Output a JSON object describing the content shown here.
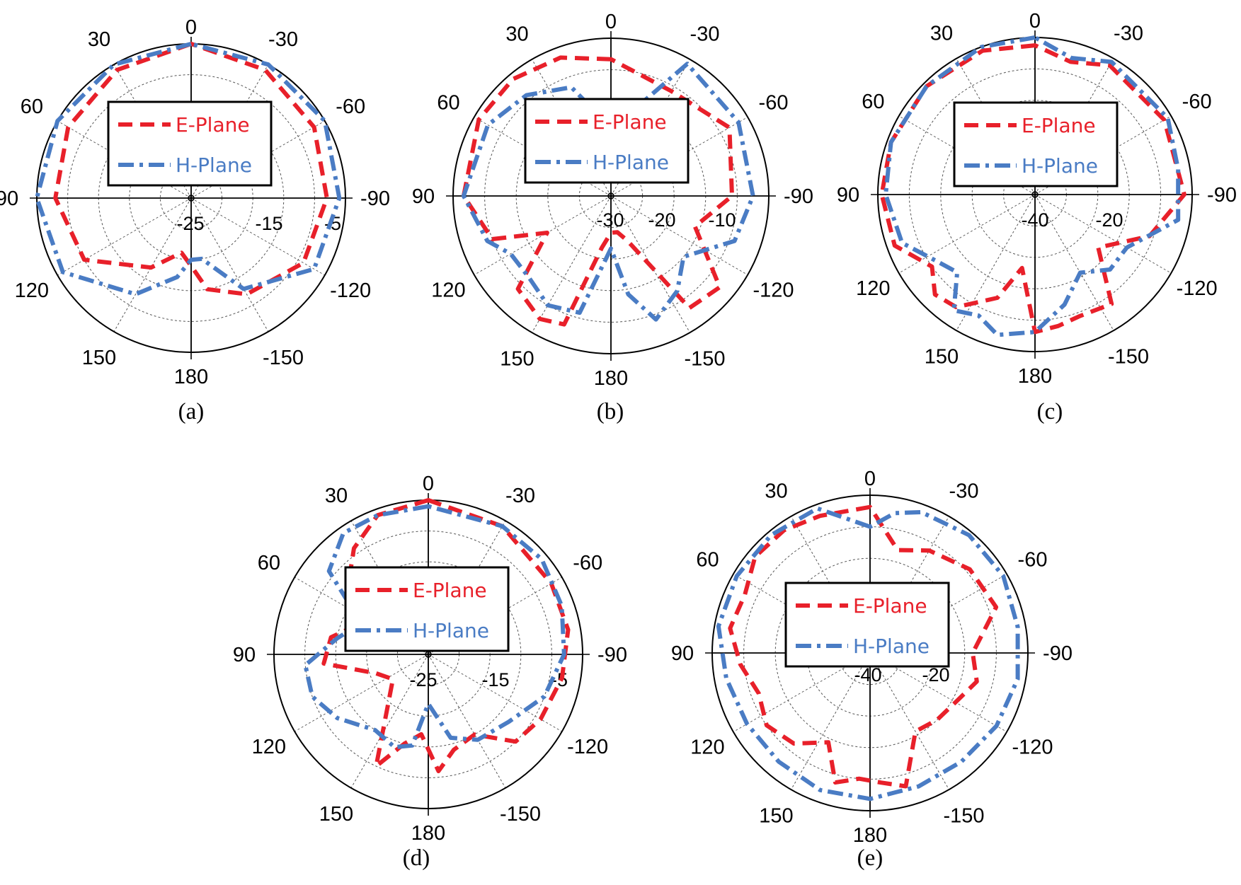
{
  "colors": {
    "e_plane": "#e8202a",
    "h_plane": "#4a7cc4"
  },
  "chart_data": [
    {
      "type": "polar",
      "caption": "(a)",
      "angle_labels": [
        "0",
        "-30",
        "-60",
        "-90",
        "-120",
        "-150",
        "180",
        "150",
        "120",
        "90",
        "60",
        "30"
      ],
      "radial_ticks": [
        "-25",
        "-15",
        "-5"
      ],
      "radial_range": [
        -25,
        -5
      ],
      "grid": true,
      "legend_position": "center",
      "series": [
        {
          "name": "E-Plane",
          "theta": [
            0,
            30,
            60,
            90,
            120,
            150,
            170,
            180,
            190,
            210,
            240,
            270,
            300,
            330
          ],
          "r": [
            -5,
            -6,
            -7,
            -8,
            -10,
            -17,
            -21,
            -19,
            -15,
            -12,
            -9,
            -8,
            -7,
            -6
          ]
        },
        {
          "name": "H-Plane",
          "theta": [
            0,
            30,
            60,
            90,
            120,
            150,
            170,
            180,
            190,
            210,
            240,
            270,
            300,
            330
          ],
          "r": [
            -5,
            -5,
            -5,
            -5,
            -6,
            -12,
            -17,
            -20,
            -20,
            -13,
            -7,
            -6,
            -5,
            -5
          ]
        }
      ]
    },
    {
      "type": "polar",
      "caption": "(b)",
      "angle_labels": [
        "0",
        "-30",
        "-60",
        "-90",
        "-120",
        "-150",
        "180",
        "150",
        "120",
        "90",
        "60",
        "30"
      ],
      "radial_ticks": [
        "-30",
        "-20",
        "-10"
      ],
      "radial_range": [
        -30,
        -5
      ],
      "grid": true,
      "legend_position": "center",
      "series": [
        {
          "name": "E-Plane",
          "theta": [
            0,
            20,
            40,
            60,
            90,
            110,
            120,
            135,
            150,
            160,
            170,
            180,
            190,
            200,
            215,
            230,
            250,
            270,
            300,
            330
          ],
          "r": [
            -9,
            -7,
            -6,
            -6,
            -7,
            -11,
            -21,
            -10,
            -8,
            -9,
            -25,
            -28,
            -28,
            -26,
            -9,
            -8,
            -18,
            -12,
            -9,
            -12
          ]
        },
        {
          "name": "H-Plane",
          "theta": [
            0,
            20,
            40,
            60,
            90,
            110,
            120,
            135,
            150,
            165,
            180,
            190,
            200,
            215,
            230,
            250,
            270,
            300,
            330,
            345
          ],
          "r": [
            -22,
            -13,
            -10,
            -8,
            -7,
            -10,
            -13,
            -13,
            -11,
            -12,
            -25,
            -16,
            -10,
            -13,
            -17,
            -10,
            -8,
            -7,
            -6,
            -18
          ]
        }
      ]
    },
    {
      "type": "polar",
      "caption": "(c)",
      "angle_labels": [
        "0",
        "-30",
        "-60",
        "-90",
        "-120",
        "-150",
        "180",
        "150",
        "120",
        "90",
        "60",
        "30"
      ],
      "radial_ticks": [
        "-40",
        "-20"
      ],
      "radial_range": [
        -40,
        -5
      ],
      "grid": true,
      "legend_position": "center",
      "series": [
        {
          "name": "E-Plane",
          "theta": [
            0,
            20,
            45,
            70,
            90,
            110,
            125,
            135,
            145,
            160,
            170,
            180,
            190,
            200,
            215,
            230,
            250,
            270,
            300,
            330,
            345
          ],
          "r": [
            -7,
            -6,
            -6,
            -6,
            -6,
            -7,
            -13,
            -9,
            -10,
            -17,
            -26,
            -10,
            -11,
            -12,
            -11,
            -24,
            -14,
            -7,
            -7,
            -7,
            -10
          ]
        },
        {
          "name": "H-Plane",
          "theta": [
            0,
            20,
            45,
            70,
            90,
            110,
            125,
            135,
            145,
            155,
            165,
            180,
            195,
            210,
            225,
            240,
            260,
            280,
            300,
            330,
            345
          ],
          "r": [
            -5,
            -5,
            -6,
            -6,
            -7,
            -9,
            -15,
            -17,
            -9,
            -11,
            -8,
            -10,
            -16,
            -22,
            -18,
            -18,
            -8,
            -8,
            -6,
            -6,
            -9
          ]
        }
      ]
    },
    {
      "type": "polar",
      "caption": "(d)",
      "angle_labels": [
        "0",
        "-30",
        "-60",
        "-90",
        "-120",
        "-150",
        "180",
        "150",
        "120",
        "90",
        "60",
        "30"
      ],
      "radial_ticks": [
        "-25",
        "-15",
        "-5"
      ],
      "radial_range": [
        -25,
        -5
      ],
      "grid": true,
      "legend_position": "center",
      "series": [
        {
          "name": "E-Plane",
          "theta": [
            0,
            20,
            35,
            50,
            65,
            80,
            95,
            110,
            125,
            140,
            155,
            165,
            175,
            185,
            195,
            210,
            225,
            240,
            260,
            280,
            300,
            330
          ],
          "r": [
            -5,
            -6,
            -9,
            -13,
            -18,
            -14,
            -13,
            -21,
            -23,
            -20,
            -10,
            -15,
            -17,
            -11,
            -14,
            -15,
            -10,
            -9,
            -8,
            -7,
            -7,
            -6
          ]
        },
        {
          "name": "H-Plane",
          "theta": [
            0,
            20,
            35,
            50,
            65,
            80,
            95,
            110,
            125,
            145,
            160,
            170,
            180,
            195,
            210,
            230,
            250,
            270,
            290,
            310,
            330
          ],
          "r": [
            -6,
            -6,
            -6,
            -9,
            -18,
            -15,
            -10,
            -10,
            -12,
            -15,
            -14,
            -15,
            -22,
            -16,
            -14,
            -13,
            -10,
            -8,
            -7,
            -6,
            -6
          ]
        }
      ]
    },
    {
      "type": "polar",
      "caption": "(e)",
      "angle_labels": [
        "0",
        "-30",
        "-60",
        "-90",
        "-120",
        "-150",
        "180",
        "150",
        "120",
        "90",
        "60",
        "30"
      ],
      "radial_ticks": [
        "-40",
        "-20"
      ],
      "radial_range": [
        -40,
        -5
      ],
      "grid": true,
      "legend_position": "center",
      "series": [
        {
          "name": "E-Plane",
          "theta": [
            0,
            20,
            35,
            50,
            65,
            80,
            95,
            110,
            125,
            140,
            155,
            165,
            175,
            185,
            195,
            210,
            225,
            240,
            255,
            270,
            290,
            310,
            330,
            345
          ],
          "r": [
            -8,
            -8,
            -7,
            -7,
            -10,
            -9,
            -12,
            -15,
            -13,
            -15,
            -20,
            -11,
            -13,
            -12,
            -10,
            -22,
            -21,
            -20,
            -17,
            -19,
            -11,
            -12,
            -15,
            -18
          ]
        },
        {
          "name": "H-Plane",
          "theta": [
            0,
            20,
            40,
            60,
            80,
            100,
            120,
            140,
            160,
            180,
            200,
            220,
            240,
            260,
            280,
            300,
            320,
            340,
            350
          ],
          "r": [
            -13,
            -6,
            -6,
            -6,
            -6,
            -8,
            -9,
            -9,
            -8,
            -8,
            -9,
            -9,
            -8,
            -7,
            -7,
            -6,
            -6,
            -7,
            -9
          ]
        }
      ]
    }
  ]
}
